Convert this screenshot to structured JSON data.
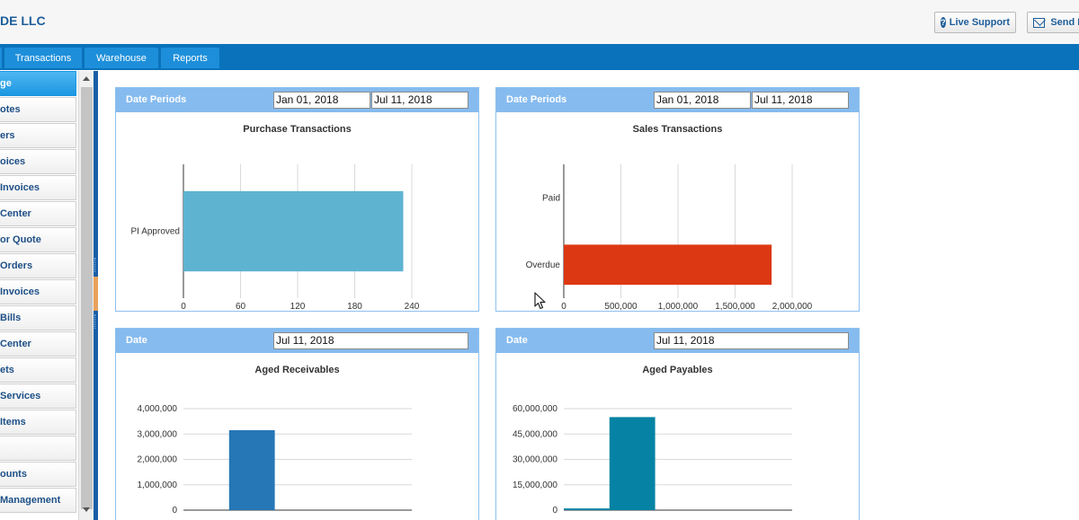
{
  "header": {
    "company": "DE LLC",
    "live_support": "Live Support",
    "send": "Send F"
  },
  "nav": {
    "tabs": [
      "",
      "Transactions",
      "Warehouse",
      "Reports"
    ]
  },
  "sidebar": {
    "items": [
      "ge",
      "otes",
      "ers",
      "oices",
      " Invoices",
      " Center",
      "or Quote",
      " Orders",
      " Invoices",
      " Bills",
      " Center",
      "ets",
      " Services",
      " Items",
      "",
      "ounts",
      " Management"
    ]
  },
  "panels": {
    "purchase": {
      "header_label": "Date Periods",
      "date_from": "Jan 01, 2018",
      "date_to": "Jul 11, 2018",
      "chart_title": "Purchase Transactions"
    },
    "sales": {
      "header_label": "Date Periods",
      "date_from": "Jan 01, 2018",
      "date_to": "Jul 11, 2018",
      "chart_title": "Sales Transactions"
    },
    "receivables": {
      "header_label": "Date",
      "date": "Jul 11, 2018",
      "chart_title": "Aged Receivables"
    },
    "payables": {
      "header_label": "Date",
      "date": "Jul 11, 2018",
      "chart_title": "Aged Payables"
    }
  },
  "colors": {
    "nav_blue": "#0a72bb",
    "panel_header": "#86bbef",
    "purchase_bar": "#5eb3d1",
    "sales_bar": "#dd3814",
    "receivables_bar": "#2577b5",
    "payables_bar": "#0683a4"
  },
  "chart_data": [
    {
      "type": "bar",
      "orientation": "horizontal",
      "title": "Purchase Transactions",
      "categories": [
        "PI Approved"
      ],
      "values": [
        231
      ],
      "xlim": [
        0,
        240
      ],
      "xticks": [
        "0",
        "60",
        "120",
        "180",
        "240"
      ],
      "grid": true
    },
    {
      "type": "bar",
      "orientation": "horizontal",
      "title": "Sales Transactions",
      "categories": [
        "Paid",
        "Overdue"
      ],
      "values": [
        0,
        1820000
      ],
      "xlim": [
        0,
        2000000
      ],
      "xticks": [
        "0",
        "500,000",
        "1,000,000",
        "1,500,000",
        "2,000,000"
      ],
      "grid": true
    },
    {
      "type": "bar",
      "title": "Aged Receivables",
      "values": [
        0,
        3150000,
        0,
        0,
        0
      ],
      "ylim": [
        0,
        4000000
      ],
      "yticks": [
        "0",
        "1,000,000",
        "2,000,000",
        "3,000,000",
        "4,000,000"
      ],
      "grid": true
    },
    {
      "type": "bar",
      "title": "Aged Payables",
      "values": [
        1000000,
        55000000,
        0,
        0,
        0
      ],
      "ylim": [
        0,
        60000000
      ],
      "yticks": [
        "0",
        "15,000,000",
        "30,000,000",
        "45,000,000",
        "60,000,000"
      ],
      "grid": true
    }
  ]
}
